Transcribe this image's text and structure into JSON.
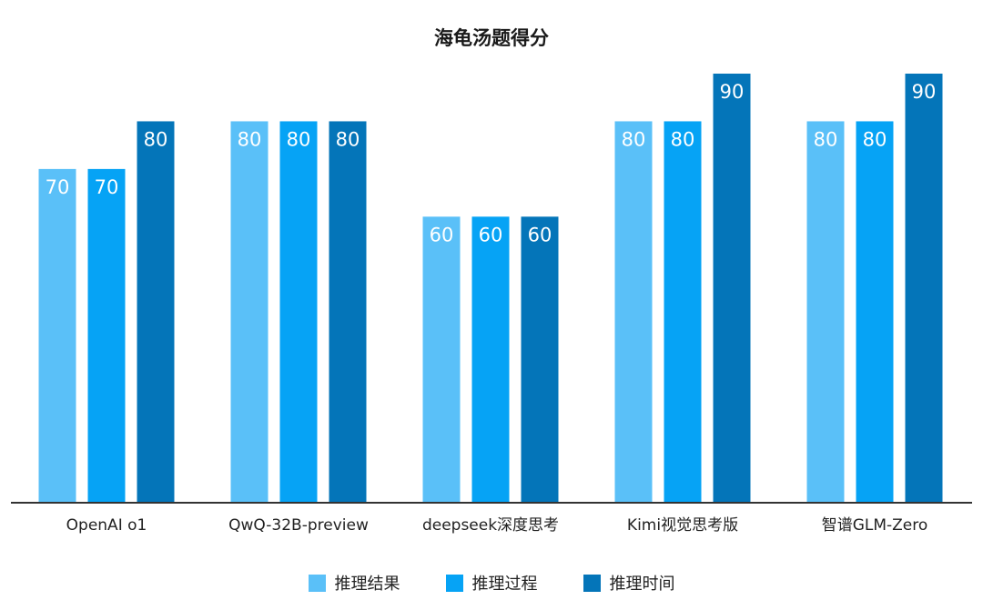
{
  "chart_data": {
    "type": "bar",
    "title": "海龟汤题得分",
    "categories": [
      "OpenAI o1",
      "QwQ-32B-preview",
      "deepseek深度思考",
      "Kimi视觉思考版",
      "智谱GLM-Zero"
    ],
    "series": [
      {
        "name": "推理结果",
        "color": "#5ac0f8",
        "values": [
          70,
          80,
          60,
          80,
          80
        ]
      },
      {
        "name": "推理过程",
        "color": "#06a3f5",
        "values": [
          70,
          80,
          60,
          80,
          80
        ]
      },
      {
        "name": "推理时间",
        "color": "#0475b9",
        "values": [
          80,
          80,
          60,
          90,
          90
        ]
      }
    ],
    "ylim": [
      0,
      90
    ],
    "grid": false,
    "data_labels": true,
    "legend_position": "bottom"
  }
}
